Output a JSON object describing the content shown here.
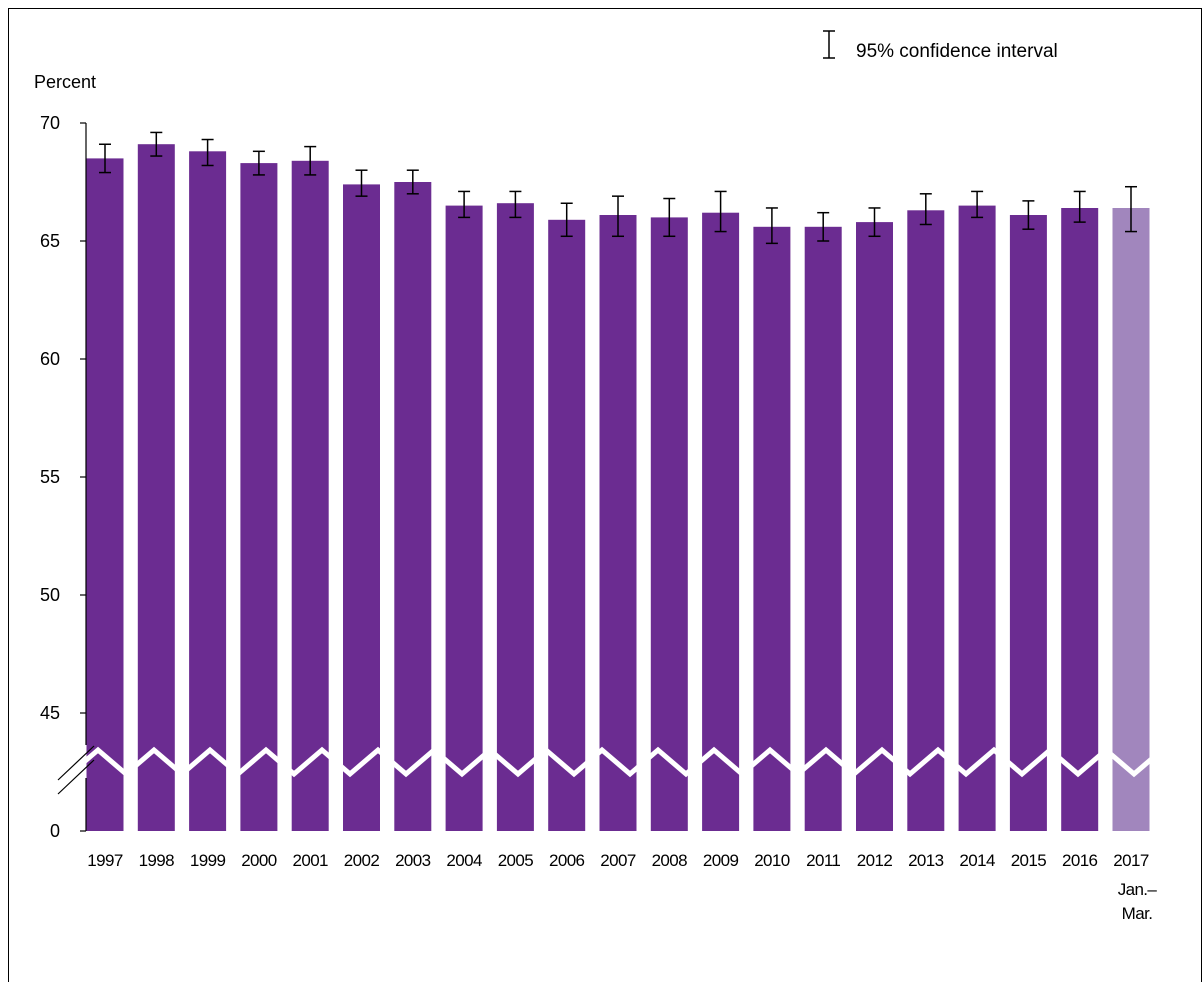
{
  "chart_data": {
    "type": "bar",
    "ylabel": "Percent",
    "ylim": [
      40,
      70
    ],
    "y_ticks": [
      "70",
      "65",
      "60",
      "55",
      "50",
      "45",
      "0"
    ],
    "axis_break": true,
    "legend": {
      "label": "95% confidence interval",
      "placement": "top-right"
    },
    "categories": [
      "1997",
      "1998",
      "1999",
      "2000",
      "2001",
      "2002",
      "2003",
      "2004",
      "2005",
      "2006",
      "2007",
      "2008",
      "2009",
      "2010",
      "2011",
      "2012",
      "2013",
      "2014",
      "2015",
      "2016",
      "2017"
    ],
    "category_sublabels": {
      "2017": [
        "Jan.–",
        "Mar."
      ]
    },
    "values": [
      68.5,
      69.1,
      68.8,
      68.3,
      68.4,
      67.4,
      67.5,
      66.5,
      66.6,
      65.9,
      66.1,
      66.0,
      66.2,
      65.6,
      65.6,
      65.8,
      66.3,
      66.5,
      66.1,
      66.4,
      66.4
    ],
    "ci_lower": [
      67.9,
      68.6,
      68.2,
      67.8,
      67.8,
      66.9,
      67.0,
      66.0,
      66.0,
      65.2,
      65.2,
      65.2,
      65.4,
      64.9,
      65.0,
      65.2,
      65.7,
      66.0,
      65.5,
      65.8,
      65.4
    ],
    "ci_upper": [
      69.1,
      69.6,
      69.3,
      68.8,
      69.0,
      68.0,
      68.0,
      67.1,
      67.1,
      66.6,
      66.9,
      66.8,
      67.1,
      66.4,
      66.2,
      66.4,
      67.0,
      67.1,
      66.7,
      67.1,
      67.3
    ],
    "colors": {
      "bar": "#6b2c91",
      "bar_preliminary": "#a186bd",
      "error_bar": "#000000"
    }
  }
}
